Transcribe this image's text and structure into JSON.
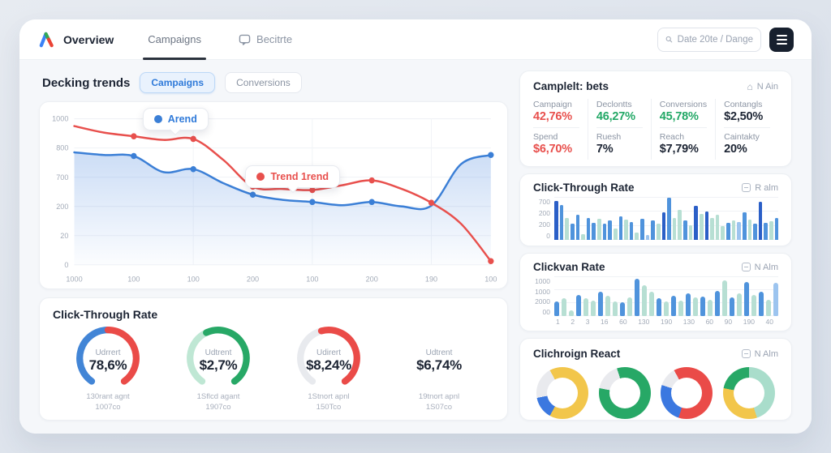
{
  "colors": {
    "blue": "#3b7fd6",
    "red": "#e8504d",
    "green": "#27a866",
    "dark": "#1d2534",
    "bar_dark": "#2b5fc7",
    "bar_blue": "#4f93dc",
    "bar_light": "#9cc4ef",
    "bar_teal": "#b7dfd3",
    "gauge_gray": "#e8eaee",
    "gauge_lightgreen": "#bfe7d4",
    "donut_yellow": "#f2c64b",
    "donut_gray": "#e9eaee",
    "donut_blue": "#3b78e0",
    "donut_teal": "#a9ddcb"
  },
  "topbar": {
    "brand": "Overview",
    "tab_campaigns": "Campaigns",
    "tab_becitrte": "Becitrte",
    "search_placeholder": "Date 20te / Dange"
  },
  "trends": {
    "title": "Decking trends",
    "tab_campaigns": "Campaigns",
    "tab_conversions": "Conversions",
    "legend_chip": "Arend",
    "tooltip_chip": "Trend 1rend",
    "chart_data": {
      "type": "line",
      "y_labels": [
        "1000",
        "800",
        "700",
        "200",
        "20",
        "0"
      ],
      "x_labels": [
        "1000",
        "100",
        "100",
        "200",
        "100",
        "200",
        "190",
        "100"
      ],
      "ylim": [
        0,
        1000
      ],
      "series": [
        {
          "name": "Arend",
          "color": "#3b7fd6",
          "area": true,
          "shape": [
            770,
            752,
            745,
            635,
            655,
            560,
            480,
            445,
            430,
            408,
            430,
            400,
            405,
            690,
            752
          ],
          "dot_idx": [
            2,
            4,
            6,
            8,
            10,
            14
          ]
        },
        {
          "name": "Trend 1rend",
          "color": "#e8504d",
          "area": false,
          "shape": [
            950,
            905,
            880,
            855,
            862,
            720,
            535,
            520,
            512,
            545,
            578,
            520,
            425,
            280,
            25
          ],
          "dot_idx": [
            2,
            4,
            6,
            8,
            10,
            12,
            14
          ]
        }
      ]
    }
  },
  "gauges": {
    "title": "Click-Through Rate",
    "items": [
      {
        "label": "Udrrert",
        "value": "78,6%",
        "sub1": "130rant agnt",
        "sub2": "1007co",
        "segments": [
          {
            "color": "#4285d6",
            "start": 215,
            "end": 360
          },
          {
            "color": "#ea4b48",
            "start": 360,
            "end": 505
          }
        ]
      },
      {
        "label": "Udtrent",
        "value": "$2,7%",
        "sub1": "1Sflcd agant",
        "sub2": "1907co",
        "segments": [
          {
            "color": "#bfe7d4",
            "start": 215,
            "end": 335
          },
          {
            "color": "#27a866",
            "start": 335,
            "end": 505
          }
        ]
      },
      {
        "label": "Udirert",
        "value": "$8,24%",
        "sub1": "1Stnort apnl",
        "sub2": "150Tco",
        "segments": [
          {
            "color": "#e8eaee",
            "start": 215,
            "end": 345
          },
          {
            "color": "#ea4b48",
            "start": 345,
            "end": 505
          }
        ]
      },
      {
        "label": "Udtrent",
        "value": "$6,74%",
        "sub1": "19tnort apnl",
        "sub2": "1S07co",
        "segments": []
      }
    ]
  },
  "stats": {
    "title": "Camplelt: bets",
    "action": "N Ain",
    "columns": [
      {
        "top": {
          "label": "Campaign",
          "value": "42,76%",
          "color": "c-red"
        },
        "bottom": {
          "label": "Spend",
          "value": "$6,70%",
          "color": "c-red"
        }
      },
      {
        "top": {
          "label": "Declontts",
          "value": "46,27%",
          "color": "c-green"
        },
        "bottom": {
          "label": "Ruesh",
          "value": "7%",
          "color": "c-dark"
        }
      },
      {
        "top": {
          "label": "Conversions",
          "value": "45,78%",
          "color": "c-green"
        },
        "bottom": {
          "label": "Reach",
          "value": "$7,79%",
          "color": "c-dark"
        }
      },
      {
        "top": {
          "label": "Contangls",
          "value": "$2,50%",
          "color": "c-dark"
        },
        "bottom": {
          "label": "Caintakty",
          "value": "20%",
          "color": "c-dark"
        }
      }
    ]
  },
  "ctr_bars": {
    "title": "Click-Through Rate",
    "action": "R alm",
    "chart_data": {
      "type": "bar",
      "y_labels": [
        "700",
        "200",
        "200",
        "0"
      ],
      "values": [
        92,
        82,
        52,
        38,
        60,
        14,
        52,
        40,
        50,
        38,
        46,
        26,
        55,
        48,
        42,
        18,
        50,
        12,
        46,
        38,
        66,
        100,
        52,
        72,
        46,
        35,
        80,
        62,
        68,
        52,
        60,
        32,
        40,
        46,
        42,
        66,
        48,
        38,
        90,
        40,
        44,
        52
      ],
      "palette": [
        "d",
        "b",
        "t",
        "b",
        "b",
        "t",
        "b",
        "b",
        "t",
        "b",
        "b",
        "t",
        "b",
        "t",
        "b",
        "t",
        "b",
        "l",
        "b",
        "t",
        "d",
        "b",
        "t",
        "t",
        "b",
        "t",
        "d",
        "t",
        "d",
        "t",
        "t",
        "t",
        "b",
        "t",
        "l",
        "b",
        "t",
        "b",
        "d",
        "b",
        "t",
        "b"
      ]
    }
  },
  "clickvan": {
    "title": "Clickvan Rate",
    "action": "N Alm",
    "chart_data": {
      "type": "bar",
      "y_labels": [
        "1000",
        "1000",
        "2000",
        "00"
      ],
      "x_labels": [
        "1",
        "2",
        "3",
        "16",
        "60",
        "130",
        "190",
        "130",
        "60",
        "90",
        "190",
        "40"
      ],
      "values": [
        38,
        45,
        15,
        55,
        45,
        40,
        62,
        52,
        38,
        35,
        48,
        95,
        80,
        62,
        45,
        38,
        52,
        40,
        58,
        48,
        50,
        42,
        65,
        92,
        48,
        58,
        88,
        55,
        62,
        42,
        85
      ],
      "palette": [
        "b",
        "t",
        "t",
        "b",
        "t",
        "t",
        "b",
        "t",
        "t",
        "b",
        "t",
        "b",
        "t",
        "t",
        "b",
        "t",
        "b",
        "t",
        "b",
        "t",
        "b",
        "t",
        "b",
        "t",
        "b",
        "t",
        "b",
        "t",
        "b",
        "t",
        "l"
      ]
    }
  },
  "donuts": {
    "title": "Clichroign React",
    "action": "N Alm",
    "chart_data": {
      "type": "pie",
      "items": [
        {
          "segments": [
            [
              "#f2c64b",
              58
            ],
            [
              "#3b78e0",
              14
            ],
            [
              "#e9eaee",
              20
            ],
            [
              "#f2c64b",
              8
            ]
          ]
        },
        {
          "segments": [
            [
              "#27a866",
              78
            ],
            [
              "#e9eaee",
              17
            ],
            [
              "#27a866",
              5
            ]
          ]
        },
        {
          "segments": [
            [
              "#ea4b48",
              55
            ],
            [
              "#3b78e0",
              25
            ],
            [
              "#e9eaee",
              12
            ],
            [
              "#ea4b48",
              8
            ]
          ]
        },
        {
          "segments": [
            [
              "#a9ddcb",
              45
            ],
            [
              "#f2c64b",
              33
            ],
            [
              "#27a866",
              22
            ]
          ]
        }
      ]
    }
  }
}
